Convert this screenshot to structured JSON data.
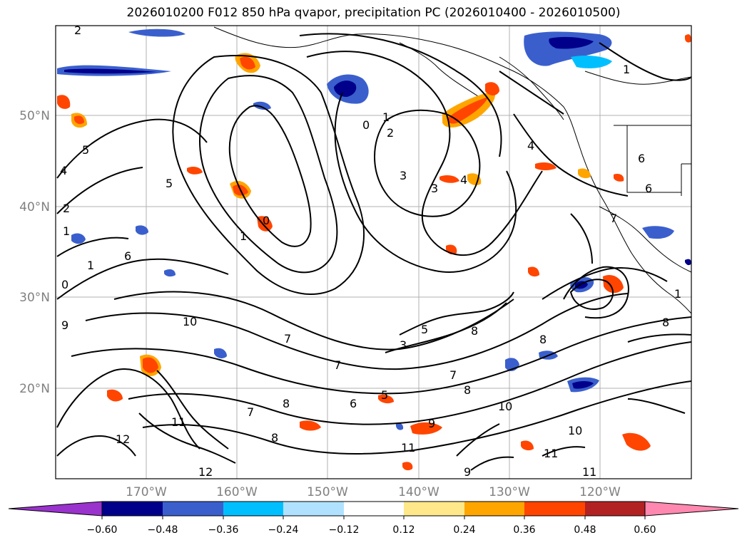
{
  "title": "2026010200 F012 850 hPa qvapor, precipitation PC (2026010400 - 2026010500)",
  "map": {
    "lat_labels": [
      "50°N",
      "40°N",
      "30°N",
      "20°N"
    ],
    "lon_labels": [
      "170°W",
      "160°W",
      "150°W",
      "140°W",
      "130°W",
      "120°W"
    ],
    "contour_labels": [
      "2",
      "1",
      "5",
      "4",
      "5",
      "0",
      "1",
      "2",
      "3",
      "3",
      "4",
      "4",
      "6",
      "6",
      "7",
      "1",
      "0",
      "9",
      "10",
      "7",
      "7",
      "3",
      "5",
      "8",
      "8",
      "7",
      "8",
      "10",
      "11",
      "10",
      "11",
      "11",
      "12",
      "12",
      "11",
      "9",
      "8",
      "8",
      "7",
      "6",
      "5",
      "1",
      "0",
      "1",
      "8",
      "9",
      "6",
      "1",
      "2"
    ]
  },
  "colorbar": {
    "tick_labels": [
      "−0.60",
      "−0.48",
      "−0.36",
      "−0.24",
      "−0.12",
      "0.12",
      "0.24",
      "0.36",
      "0.48",
      "0.60"
    ],
    "colors": [
      "#9a32cd",
      "#00008b",
      "#3a5fcd",
      "#00bfff",
      "#b0e2ff",
      "#ffffff",
      "#ffe88a",
      "#ffa500",
      "#ff4500",
      "#b22222",
      "#ff88b0"
    ]
  }
}
